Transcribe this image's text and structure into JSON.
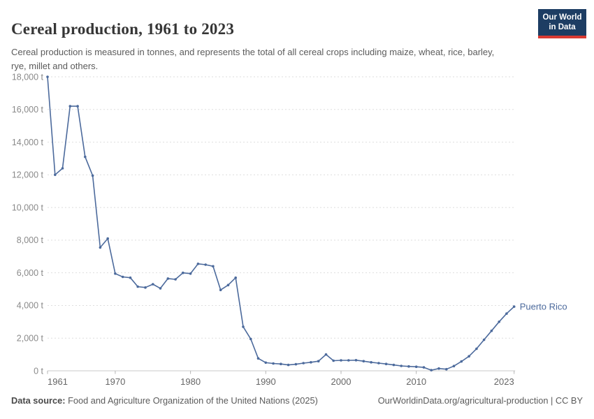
{
  "header": {
    "title": "Cereal production, 1961 to 2023",
    "subtitle": "Cereal production is measured in tonnes, and represents the total of all cereal crops including maize, wheat, rice, barley, rye, millet and others.",
    "logo": {
      "line1": "Our World",
      "line2": "in Data",
      "bg_color": "#1d3d63",
      "accent_color": "#d93a32"
    }
  },
  "chart_data": {
    "type": "line",
    "title": "Cereal production, 1961 to 2023",
    "xlabel": "",
    "ylabel": "",
    "unit": "t",
    "xlim": [
      1961,
      2023
    ],
    "ylim": [
      0,
      18000
    ],
    "grid": "horizontal-dashed",
    "legend_position": "end-of-line-label",
    "x_ticks": [
      {
        "year": 1961,
        "label": "1961",
        "anchor": "start"
      },
      {
        "year": 1970,
        "label": "1970",
        "anchor": "middle"
      },
      {
        "year": 1980,
        "label": "1980",
        "anchor": "middle"
      },
      {
        "year": 1990,
        "label": "1990",
        "anchor": "middle"
      },
      {
        "year": 2000,
        "label": "2000",
        "anchor": "middle"
      },
      {
        "year": 2010,
        "label": "2010",
        "anchor": "middle"
      },
      {
        "year": 2023,
        "label": "2023",
        "anchor": "end"
      }
    ],
    "y_ticks": [
      {
        "value": 0,
        "label": "0 t"
      },
      {
        "value": 2000,
        "label": "2,000 t"
      },
      {
        "value": 4000,
        "label": "4,000 t"
      },
      {
        "value": 6000,
        "label": "6,000 t"
      },
      {
        "value": 8000,
        "label": "8,000 t"
      },
      {
        "value": 10000,
        "label": "10,000 t"
      },
      {
        "value": 12000,
        "label": "12,000 t"
      },
      {
        "value": 14000,
        "label": "14,000 t"
      },
      {
        "value": 16000,
        "label": "16,000 t"
      },
      {
        "value": 18000,
        "label": "18,000 t"
      }
    ],
    "series": [
      {
        "name": "Puerto Rico",
        "color": "#4c6a9c",
        "x": [
          1961,
          1962,
          1963,
          1964,
          1965,
          1966,
          1967,
          1968,
          1969,
          1970,
          1971,
          1972,
          1973,
          1974,
          1975,
          1976,
          1977,
          1978,
          1979,
          1980,
          1981,
          1982,
          1983,
          1984,
          1985,
          1986,
          1987,
          1988,
          1989,
          1990,
          1991,
          1992,
          1993,
          1994,
          1995,
          1996,
          1997,
          1998,
          1999,
          2000,
          2001,
          2002,
          2003,
          2004,
          2005,
          2006,
          2007,
          2008,
          2009,
          2010,
          2011,
          2012,
          2013,
          2014,
          2015,
          2016,
          2017,
          2018,
          2019,
          2020,
          2021,
          2022,
          2023
        ],
        "values": [
          18000,
          12000,
          12400,
          16200,
          16200,
          13100,
          11950,
          7550,
          8100,
          5950,
          5750,
          5700,
          5150,
          5100,
          5300,
          5050,
          5650,
          5600,
          6000,
          5950,
          6550,
          6500,
          6400,
          4950,
          5250,
          5700,
          2700,
          1950,
          760,
          500,
          450,
          420,
          360,
          400,
          470,
          520,
          590,
          1000,
          620,
          640,
          640,
          650,
          590,
          520,
          470,
          420,
          360,
          300,
          270,
          250,
          210,
          40,
          140,
          100,
          290,
          575,
          890,
          1350,
          1900,
          2450,
          3000,
          3500,
          3930
        ]
      }
    ]
  },
  "footer": {
    "source_label": "Data source:",
    "source_text": " Food and Agriculture Organization of the United Nations (2025)",
    "credit": "OurWorldinData.org/agricultural-production | CC BY"
  }
}
